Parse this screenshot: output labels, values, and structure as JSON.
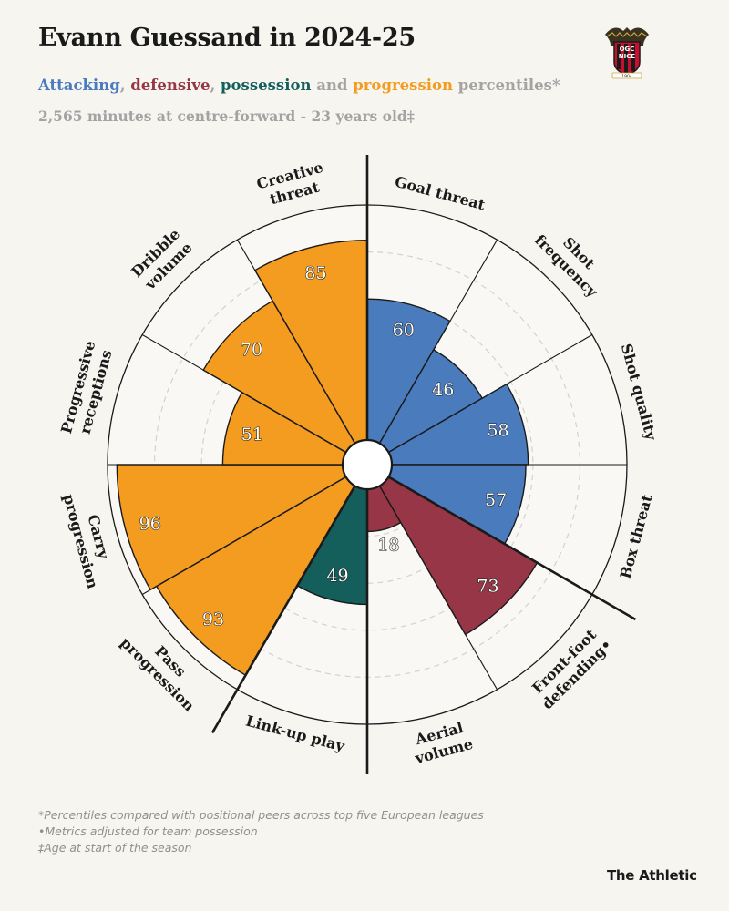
{
  "header": {
    "title": "Evann Guessand in 2024-25",
    "subtitle_parts": {
      "attacking": "Attacking",
      "sep1": ", ",
      "defensive": "defensive",
      "sep2": ", ",
      "possession": "possession",
      "sep3": " and ",
      "progression": "progression",
      "rest": " percentiles*"
    },
    "info_line": "2,565 minutes at centre-forward - 23 years old‡"
  },
  "crest": {
    "line1": "OGC",
    "line2": "NICE",
    "year": "1904"
  },
  "colors": {
    "attacking": "#4a7bbd",
    "defensive": "#963647",
    "possession": "#145e5c",
    "progression": "#f39c1f"
  },
  "chart_data": {
    "type": "polar-bar",
    "range": [
      0,
      100
    ],
    "categories": [
      {
        "label": "Goal threat",
        "value": 60,
        "group": "attacking"
      },
      {
        "label": "Shot frequency",
        "value": 46,
        "group": "attacking"
      },
      {
        "label": "Shot quality",
        "value": 58,
        "group": "attacking"
      },
      {
        "label": "Box threat",
        "value": 57,
        "group": "attacking"
      },
      {
        "label": "Front-foot defending•",
        "value": 73,
        "group": "defensive"
      },
      {
        "label": "Aerial volume",
        "value": 18,
        "group": "defensive"
      },
      {
        "label": "Link-up play",
        "value": 49,
        "group": "possession"
      },
      {
        "label": "Pass progression",
        "value": 93,
        "group": "progression"
      },
      {
        "label": "Carry progression",
        "value": 96,
        "group": "progression"
      },
      {
        "label": "Progressive receptions",
        "value": 51,
        "group": "progression"
      },
      {
        "label": "Dribble volume",
        "value": 70,
        "group": "progression"
      },
      {
        "label": "Creative threat",
        "value": 85,
        "group": "progression"
      }
    ]
  },
  "footnotes": [
    "*Percentiles compared with positional peers across top five European leagues",
    "•Metrics adjusted for team possession",
    "‡Age at start of the season"
  ],
  "brand": "The Athletic"
}
